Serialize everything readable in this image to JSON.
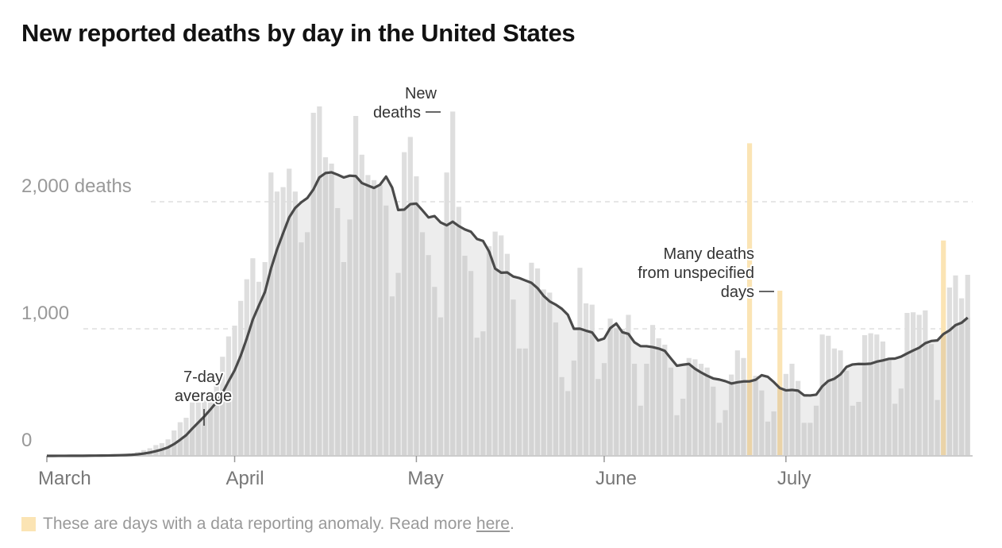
{
  "title": "New reported deaths by day in the United States",
  "chart_data": {
    "type": "bar",
    "title": "New reported deaths by day in the United States",
    "start_date": "2020-03-01",
    "end_date": "2020-07-31",
    "ylim": [
      0,
      2750
    ],
    "yticks": [
      {
        "value": 0,
        "label": "0"
      },
      {
        "value": 1000,
        "label": "1,000"
      },
      {
        "value": 2000,
        "label": "2,000 deaths"
      }
    ],
    "xticks": [
      {
        "date": "2020-03-01",
        "label": "March"
      },
      {
        "date": "2020-04-01",
        "label": "April"
      },
      {
        "date": "2020-05-01",
        "label": "May"
      },
      {
        "date": "2020-06-01",
        "label": "June"
      },
      {
        "date": "2020-07-01",
        "label": "July"
      }
    ],
    "grid": "dashed horizontal",
    "series": [
      {
        "name": "New deaths",
        "values": [
          0,
          0,
          1,
          1,
          2,
          1,
          2,
          3,
          4,
          3,
          5,
          8,
          10,
          12,
          17,
          30,
          45,
          60,
          85,
          100,
          130,
          200,
          265,
          300,
          420,
          420,
          440,
          510,
          600,
          780,
          940,
          1025,
          1220,
          1390,
          1555,
          1370,
          1525,
          2230,
          2080,
          2115,
          2260,
          2080,
          1680,
          1760,
          2700,
          2750,
          2350,
          2300,
          1950,
          1525,
          1860,
          2675,
          2370,
          2210,
          2170,
          2130,
          1970,
          1255,
          1440,
          2390,
          2510,
          2200,
          1760,
          1580,
          1330,
          1090,
          2230,
          2710,
          1960,
          1575,
          1455,
          930,
          980,
          1650,
          1765,
          1735,
          1590,
          1230,
          845,
          845,
          1520,
          1475,
          1310,
          1285,
          1050,
          620,
          510,
          750,
          1480,
          1200,
          1190,
          605,
          730,
          1080,
          1005,
          1000,
          1110,
          725,
          395,
          725,
          1030,
          925,
          875,
          695,
          320,
          450,
          770,
          760,
          725,
          695,
          545,
          260,
          360,
          640,
          830,
          770,
          2460,
          630,
          515,
          270,
          350,
          1300,
          645,
          725,
          590,
          260,
          260,
          395,
          955,
          945,
          845,
          830,
          670,
          395,
          425,
          950,
          965,
          955,
          900,
          755,
          410,
          530,
          1125,
          1130,
          1110,
          1145,
          880,
          440,
          1695,
          1325,
          1420,
          1240,
          1425
        ]
      },
      {
        "name": "7-day average",
        "type": "line",
        "note_label": "7-day average"
      }
    ],
    "anomaly_dates": [
      "2020-06-25",
      "2020-06-30",
      "2020-07-27"
    ],
    "colors": {
      "bar": "#d4d4d4",
      "bar_above": "#dedede",
      "area": "#ededed",
      "line": "#4a4a4a",
      "anomaly": "#fbe4b4",
      "anomaly_below": "#ead3a8"
    }
  },
  "annotations": {
    "new_deaths": [
      "New",
      "deaths"
    ],
    "average": [
      "7-day",
      "average"
    ],
    "unspecified": [
      "Many deaths",
      "from unspecified",
      "days"
    ]
  },
  "footnote": {
    "text": "These are days with a data reporting anomaly. Read more ",
    "link": "here",
    "end": "."
  }
}
